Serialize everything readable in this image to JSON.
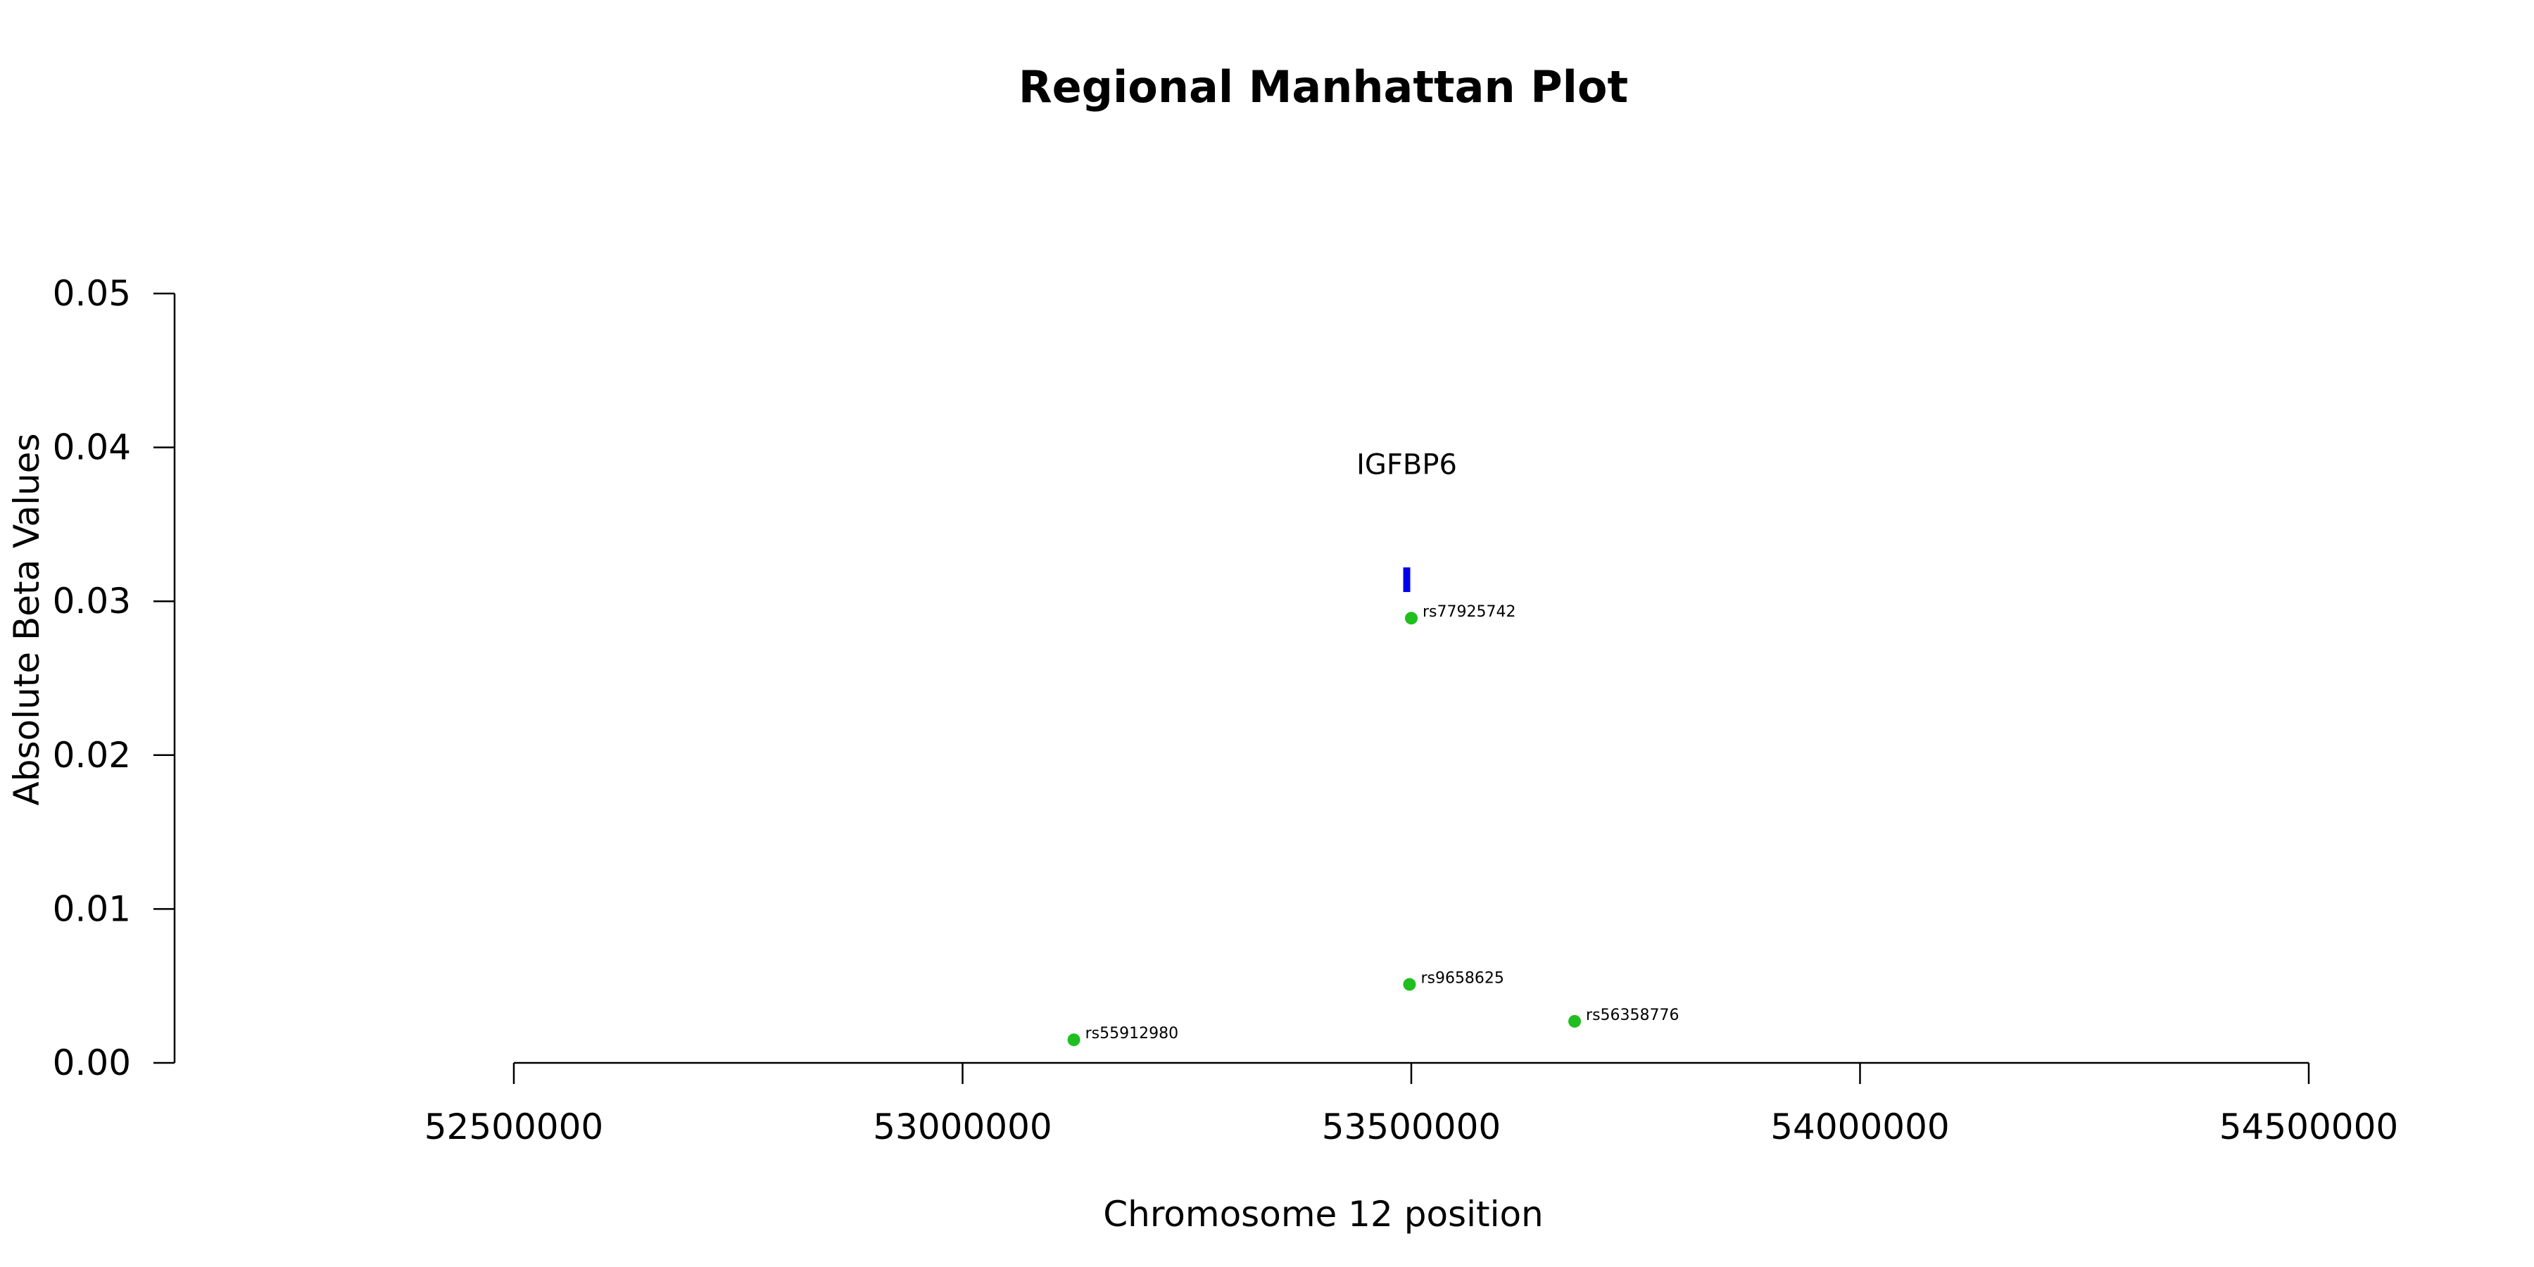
{
  "chart_data": {
    "type": "scatter",
    "title": "Regional Manhattan Plot",
    "xlabel": "Chromosome 12 position",
    "ylabel": "Absolute Beta Values",
    "xlim": [
      52500000,
      54500000
    ],
    "ylim": [
      0,
      0.05
    ],
    "x_ticks": [
      52500000,
      53000000,
      53500000,
      54000000,
      54500000
    ],
    "y_ticks": [
      "0.00",
      "0.01",
      "0.02",
      "0.03",
      "0.04",
      "0.05"
    ],
    "grid": false,
    "point_color": "#1fbf1f",
    "points": [
      {
        "label": "rs77925742",
        "x": 53500000,
        "y": 0.0289
      },
      {
        "label": "rs9658625",
        "x": 53498000,
        "y": 0.0051
      },
      {
        "label": "rs56358776",
        "x": 53682000,
        "y": 0.0027
      },
      {
        "label": "rs55912980",
        "x": 53124000,
        "y": 0.0015
      }
    ],
    "genes": [
      {
        "name": "IGFBP6",
        "x_start": 53491000,
        "x_end": 53497000,
        "y_bottom": 0.0306,
        "y_top": 0.0322,
        "color": "#0000ee",
        "label_y": 0.0389
      }
    ]
  }
}
